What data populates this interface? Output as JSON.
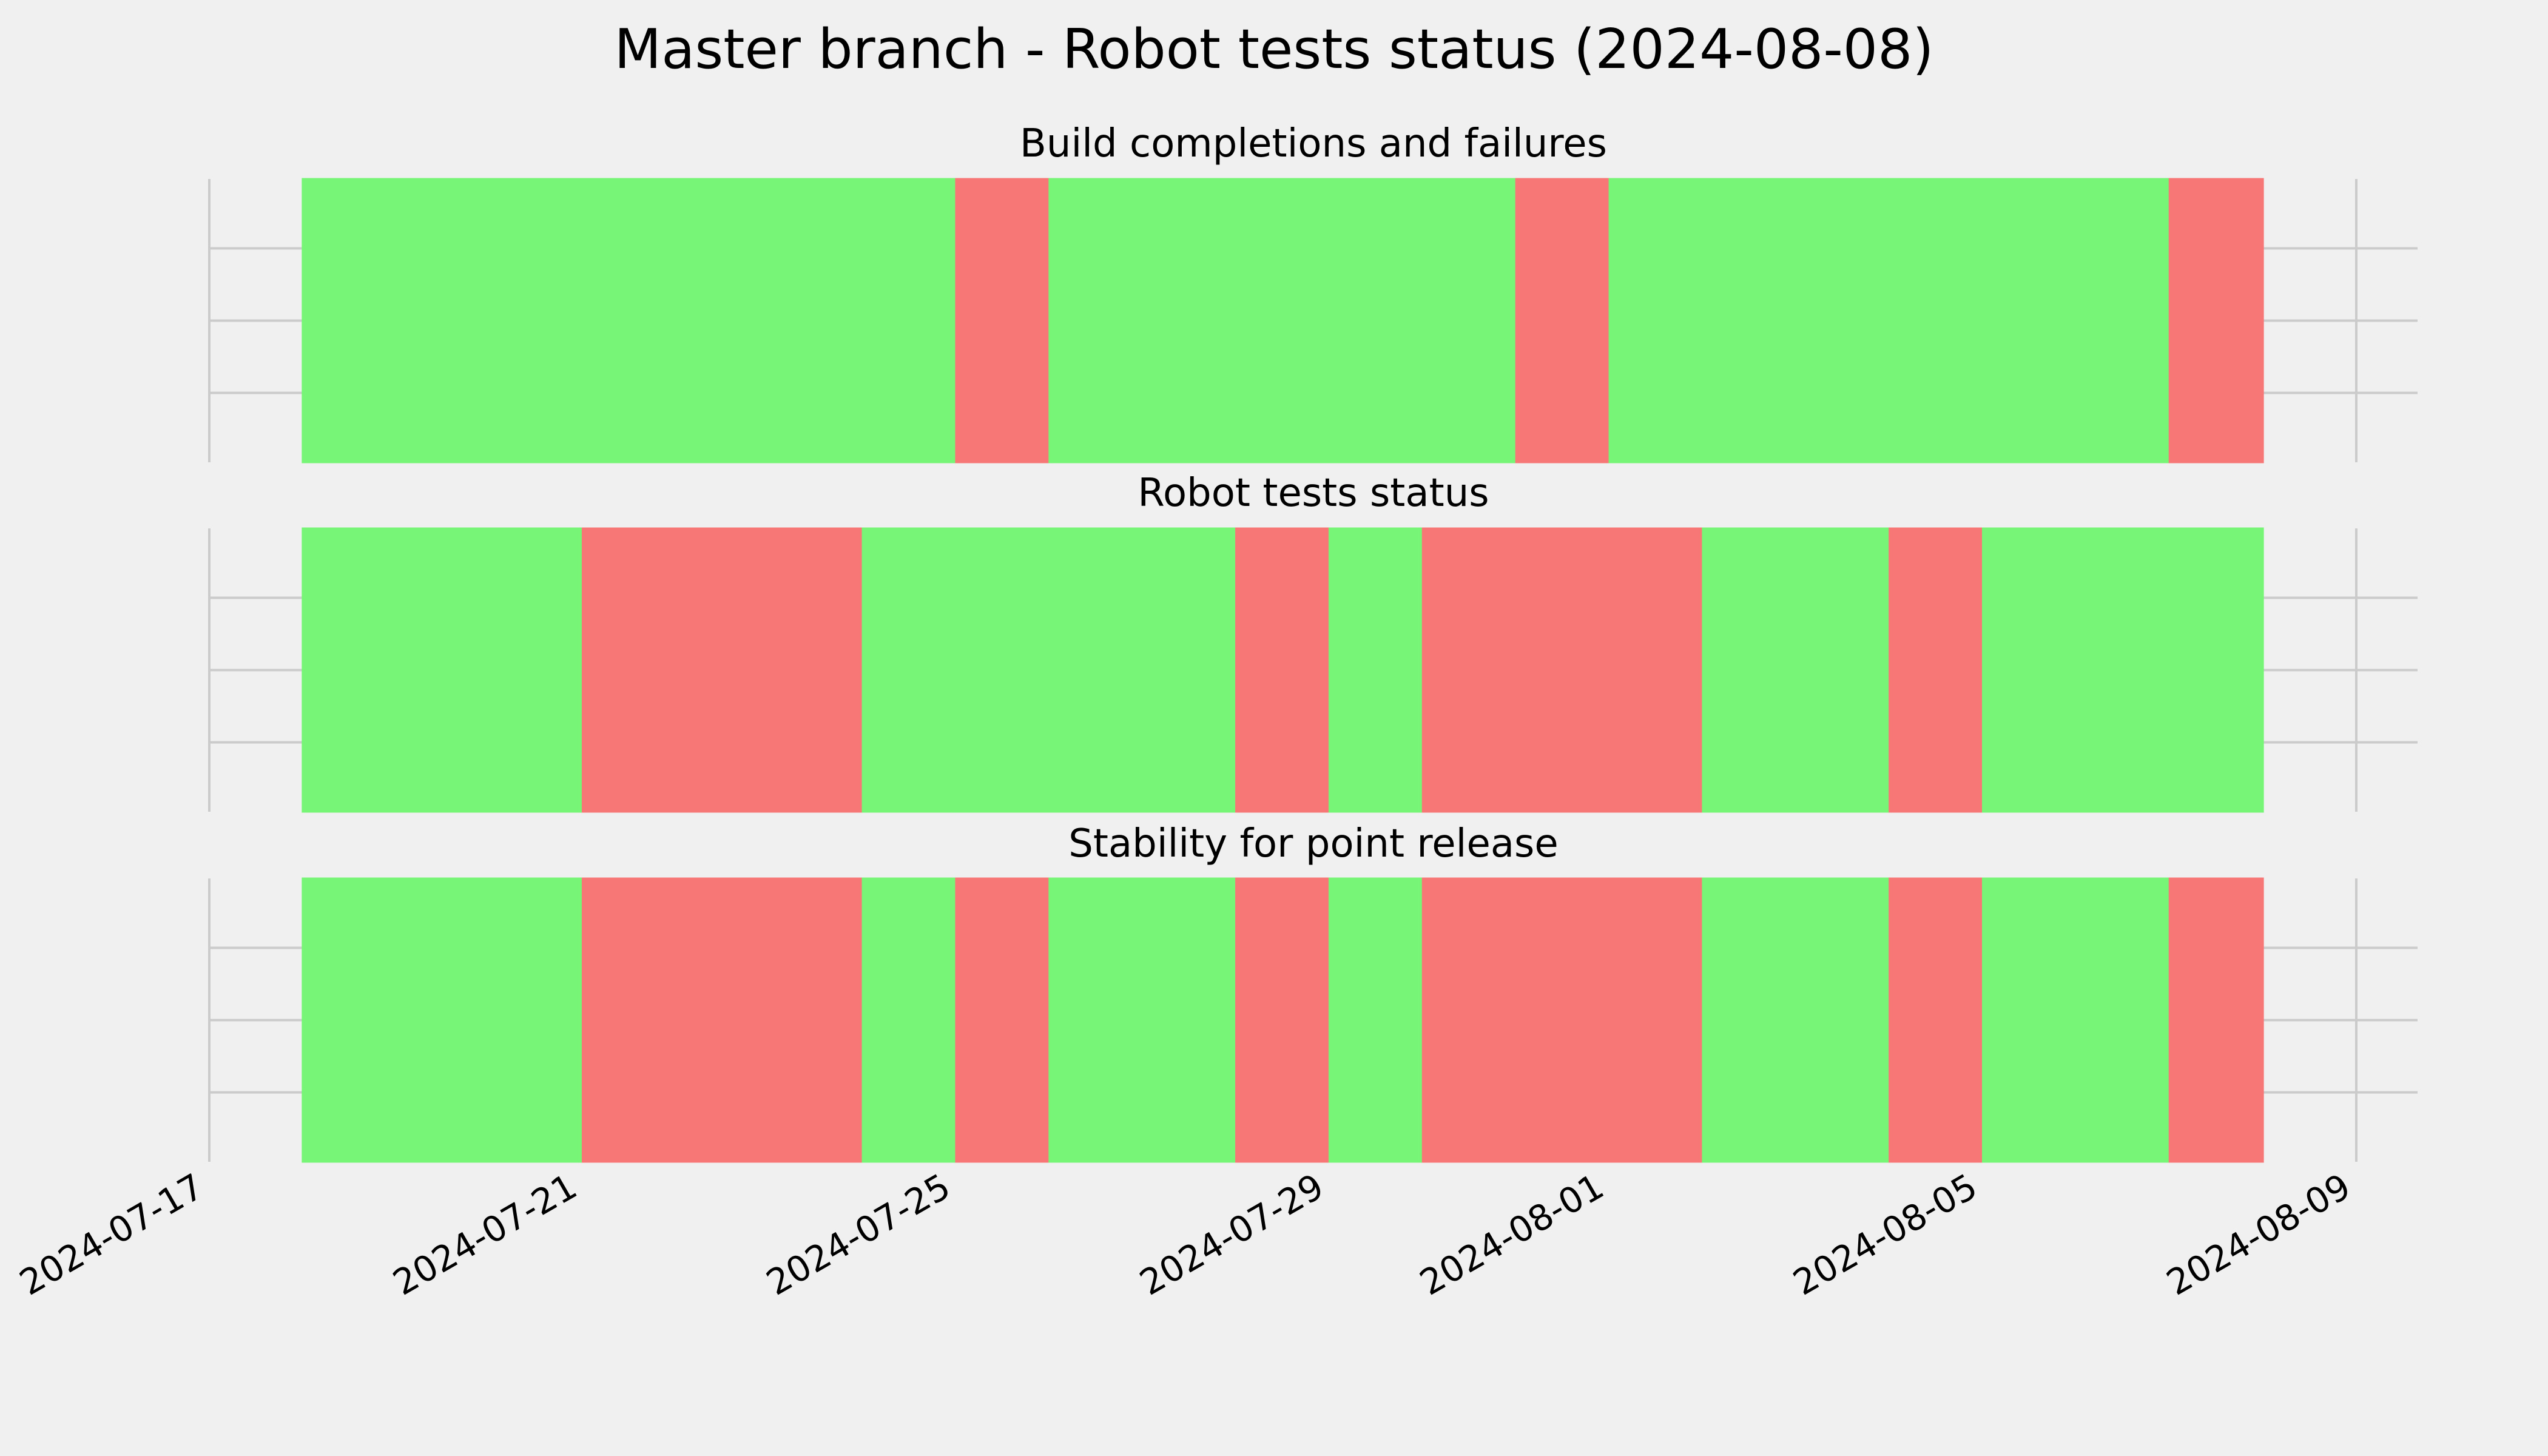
{
  "chart_data": {
    "type": "timeline",
    "title": "Master branch - Robot tests status (2024-08-08)",
    "x_type": "date",
    "xlim": [
      "2024-07-17",
      "2024-08-09"
    ],
    "x_ticks": [
      "2024-07-17",
      "2024-07-21",
      "2024-07-25",
      "2024-07-29",
      "2024-08-01",
      "2024-08-05",
      "2024-08-09"
    ],
    "x_tick_labels": [
      "2024-07-17",
      "2024-07-21",
      "2024-07-25",
      "2024-07-29",
      "2024-08-01",
      "2024-08-05",
      "2024-08-09"
    ],
    "grid": true,
    "status_colors": {
      "pass": "#77f577",
      "fail": "#f77777"
    },
    "panels": [
      {
        "title": "Build completions and failures",
        "segments": [
          {
            "start": "2024-07-18",
            "end": "2024-07-21",
            "status": "pass"
          },
          {
            "start": "2024-07-21",
            "end": "2024-07-25",
            "status": "pass"
          },
          {
            "start": "2024-07-25",
            "end": "2024-07-26",
            "status": "fail"
          },
          {
            "start": "2024-07-26",
            "end": "2024-07-29",
            "status": "pass"
          },
          {
            "start": "2024-07-29",
            "end": "2024-07-31",
            "status": "pass"
          },
          {
            "start": "2024-07-31",
            "end": "2024-08-01",
            "status": "fail"
          },
          {
            "start": "2024-08-01",
            "end": "2024-08-05",
            "status": "pass"
          },
          {
            "start": "2024-08-05",
            "end": "2024-08-07",
            "status": "pass"
          },
          {
            "start": "2024-08-07",
            "end": "2024-08-08",
            "status": "fail"
          }
        ]
      },
      {
        "title": "Robot tests status",
        "segments": [
          {
            "start": "2024-07-18",
            "end": "2024-07-21",
            "status": "pass"
          },
          {
            "start": "2024-07-21",
            "end": "2024-07-24",
            "status": "fail"
          },
          {
            "start": "2024-07-24",
            "end": "2024-07-25",
            "status": "pass"
          },
          {
            "start": "2024-07-25",
            "end": "2024-07-28",
            "status": "pass"
          },
          {
            "start": "2024-07-28",
            "end": "2024-07-29",
            "status": "fail"
          },
          {
            "start": "2024-07-29",
            "end": "2024-07-30",
            "status": "pass"
          },
          {
            "start": "2024-07-30",
            "end": "2024-08-01",
            "status": "fail"
          },
          {
            "start": "2024-08-01",
            "end": "2024-08-02",
            "status": "fail"
          },
          {
            "start": "2024-08-02",
            "end": "2024-08-04",
            "status": "pass"
          },
          {
            "start": "2024-08-04",
            "end": "2024-08-05",
            "status": "fail"
          },
          {
            "start": "2024-08-05",
            "end": "2024-08-08",
            "status": "pass"
          }
        ]
      },
      {
        "title": "Stability for point release",
        "segments": [
          {
            "start": "2024-07-18",
            "end": "2024-07-21",
            "status": "pass"
          },
          {
            "start": "2024-07-21",
            "end": "2024-07-24",
            "status": "fail"
          },
          {
            "start": "2024-07-24",
            "end": "2024-07-25",
            "status": "pass"
          },
          {
            "start": "2024-07-25",
            "end": "2024-07-26",
            "status": "fail"
          },
          {
            "start": "2024-07-26",
            "end": "2024-07-28",
            "status": "pass"
          },
          {
            "start": "2024-07-28",
            "end": "2024-07-29",
            "status": "fail"
          },
          {
            "start": "2024-07-29",
            "end": "2024-07-30",
            "status": "pass"
          },
          {
            "start": "2024-07-30",
            "end": "2024-08-01",
            "status": "fail"
          },
          {
            "start": "2024-08-01",
            "end": "2024-08-02",
            "status": "fail"
          },
          {
            "start": "2024-08-02",
            "end": "2024-08-04",
            "status": "pass"
          },
          {
            "start": "2024-08-04",
            "end": "2024-08-05",
            "status": "fail"
          },
          {
            "start": "2024-08-05",
            "end": "2024-08-07",
            "status": "pass"
          },
          {
            "start": "2024-08-07",
            "end": "2024-08-08",
            "status": "fail"
          }
        ]
      }
    ]
  }
}
